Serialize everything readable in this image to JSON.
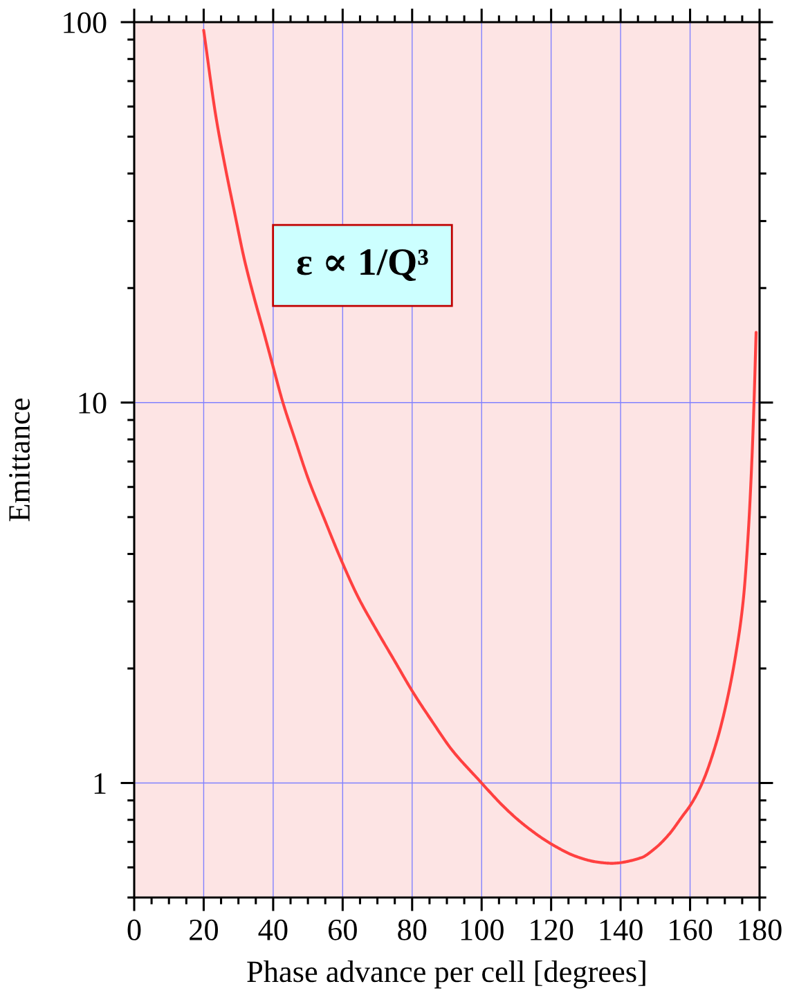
{
  "chart_data": {
    "type": "line",
    "xlabel": "Phase advance per cell [degrees]",
    "ylabel": "Emittance",
    "annotations": [
      "ε ∝ 1/Q³"
    ],
    "x": [
      20.0,
      23.5,
      26.2,
      29.0,
      31.7,
      34.5,
      37.3,
      40.0,
      42.8,
      46.4,
      50.1,
      54.7,
      59.3,
      64.3,
      70.0,
      75.0,
      80.1,
      85.8,
      91.5,
      98.7,
      107.3,
      112.7,
      120.2,
      127.4,
      133.1,
      137.4,
      145.9,
      149.9,
      153.9,
      157.8,
      160.2,
      163.5,
      167.7,
      170.7,
      173.2,
      175.3,
      176.8,
      177.8,
      178.4,
      179.0
    ],
    "values": [
      95.2,
      56.6,
      41.6,
      31.2,
      23.8,
      18.9,
      15.3,
      12.4,
      10.0,
      7.94,
      6.3,
      4.95,
      3.91,
      3.1,
      2.5,
      2.09,
      1.74,
      1.45,
      1.22,
      1.03,
      0.85,
      0.77,
      0.69,
      0.64,
      0.62,
      0.615,
      0.636,
      0.673,
      0.732,
      0.818,
      0.877,
      1.0,
      1.29,
      1.66,
      2.19,
      3.02,
      4.63,
      7.1,
      10.0,
      15.3
    ],
    "color": "#ff4040",
    "line_style": "solid",
    "log": "y",
    "grid": true,
    "xlim": [
      0,
      180
    ],
    "xticks": [
      0,
      {
        "value": 5,
        "label": null
      },
      {
        "value": 10,
        "label": null
      },
      {
        "value": 15,
        "label": null
      },
      20,
      {
        "value": 25,
        "label": null
      },
      {
        "value": 30,
        "label": null
      },
      {
        "value": 35,
        "label": null
      },
      40,
      {
        "value": 45,
        "label": null
      },
      {
        "value": 50,
        "label": null
      },
      {
        "value": 55,
        "label": null
      },
      60,
      {
        "value": 65,
        "label": null
      },
      {
        "value": 70,
        "label": null
      },
      {
        "value": 75,
        "label": null
      },
      80,
      {
        "value": 85,
        "label": null
      },
      {
        "value": 90,
        "label": null
      },
      {
        "value": 95,
        "label": null
      },
      100,
      {
        "value": 105,
        "label": null
      },
      {
        "value": 110,
        "label": null
      },
      {
        "value": 115,
        "label": null
      },
      120,
      {
        "value": 125,
        "label": null
      },
      {
        "value": 130,
        "label": null
      },
      {
        "value": 135,
        "label": null
      },
      140,
      {
        "value": 145,
        "label": null
      },
      {
        "value": 150,
        "label": null
      },
      {
        "value": 155,
        "label": null
      },
      160,
      {
        "value": 165,
        "label": null
      },
      {
        "value": 170,
        "label": null
      },
      {
        "value": 175,
        "label": null
      },
      180
    ],
    "ylim": [
      0.5,
      100
    ],
    "yticks": [
      {
        "value": 0.5,
        "label": null
      },
      {
        "value": 0.6,
        "label": null
      },
      {
        "value": 0.7,
        "label": null
      },
      {
        "value": 0.8,
        "label": null
      },
      {
        "value": 0.9,
        "label": null
      },
      1,
      {
        "value": 2,
        "label": null
      },
      {
        "value": 3,
        "label": null
      },
      {
        "value": 4,
        "label": null
      },
      {
        "value": 5,
        "label": null
      },
      {
        "value": 6,
        "label": null
      },
      {
        "value": 7,
        "label": null
      },
      {
        "value": 8,
        "label": null
      },
      {
        "value": 9,
        "label": null
      },
      10,
      {
        "value": 20,
        "label": null
      },
      {
        "value": 30,
        "label": null
      },
      {
        "value": 40,
        "label": null
      },
      {
        "value": 50,
        "label": null
      },
      {
        "value": 60,
        "label": null
      },
      {
        "value": 70,
        "label": null
      },
      {
        "value": 80,
        "label": null
      },
      {
        "value": 90,
        "label": null
      },
      100
    ]
  }
}
